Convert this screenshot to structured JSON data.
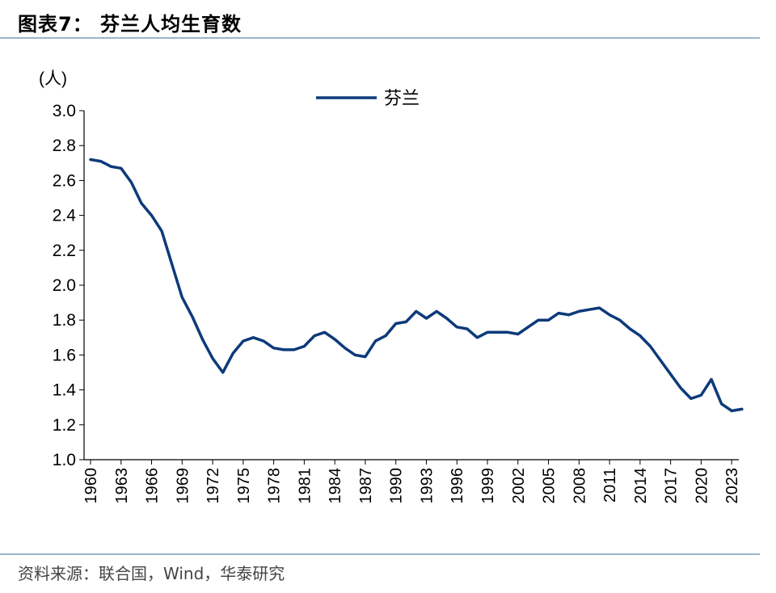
{
  "header": {
    "title": "图表7：  芬兰人均生育数"
  },
  "footer": {
    "source": "资料来源：联合国，Wind，华泰研究"
  },
  "colors": {
    "series": "#0d3a7a",
    "rule": "#9db3c9",
    "axis": "#000000"
  },
  "chart_data": {
    "type": "line",
    "title": "",
    "xlabel": "",
    "ylabel": "(人)",
    "ylim": [
      1.0,
      3.0
    ],
    "yticks": [
      "1.0",
      "1.2",
      "1.4",
      "1.6",
      "1.8",
      "2.0",
      "2.2",
      "2.4",
      "2.6",
      "2.8",
      "3.0"
    ],
    "xlim": [
      1960,
      2024
    ],
    "xticks": [
      "1960",
      "1963",
      "1966",
      "1969",
      "1972",
      "1975",
      "1978",
      "1981",
      "1984",
      "1987",
      "1990",
      "1993",
      "1996",
      "1999",
      "2002",
      "2005",
      "2008",
      "2011",
      "2014",
      "2017",
      "2020",
      "2023"
    ],
    "grid": false,
    "legend_position": "top-center",
    "x": [
      1960,
      1961,
      1962,
      1963,
      1964,
      1965,
      1966,
      1967,
      1968,
      1969,
      1970,
      1971,
      1972,
      1973,
      1974,
      1975,
      1976,
      1977,
      1978,
      1979,
      1980,
      1981,
      1982,
      1983,
      1984,
      1985,
      1986,
      1987,
      1988,
      1989,
      1990,
      1991,
      1992,
      1993,
      1994,
      1995,
      1996,
      1997,
      1998,
      1999,
      2000,
      2001,
      2002,
      2003,
      2004,
      2005,
      2006,
      2007,
      2008,
      2009,
      2010,
      2011,
      2012,
      2013,
      2014,
      2015,
      2016,
      2017,
      2018,
      2019,
      2020,
      2021,
      2022,
      2023,
      2024
    ],
    "series": [
      {
        "name": "芬兰",
        "values": [
          2.72,
          2.71,
          2.68,
          2.67,
          2.59,
          2.47,
          2.4,
          2.31,
          2.12,
          1.93,
          1.82,
          1.69,
          1.58,
          1.5,
          1.61,
          1.68,
          1.7,
          1.68,
          1.64,
          1.63,
          1.63,
          1.65,
          1.71,
          1.73,
          1.69,
          1.64,
          1.6,
          1.59,
          1.68,
          1.71,
          1.78,
          1.79,
          1.85,
          1.81,
          1.85,
          1.81,
          1.76,
          1.75,
          1.7,
          1.73,
          1.73,
          1.73,
          1.72,
          1.76,
          1.8,
          1.8,
          1.84,
          1.83,
          1.85,
          1.86,
          1.87,
          1.83,
          1.8,
          1.75,
          1.71,
          1.65,
          1.57,
          1.49,
          1.41,
          1.35,
          1.37,
          1.46,
          1.32,
          1.28,
          1.29
        ]
      }
    ]
  }
}
